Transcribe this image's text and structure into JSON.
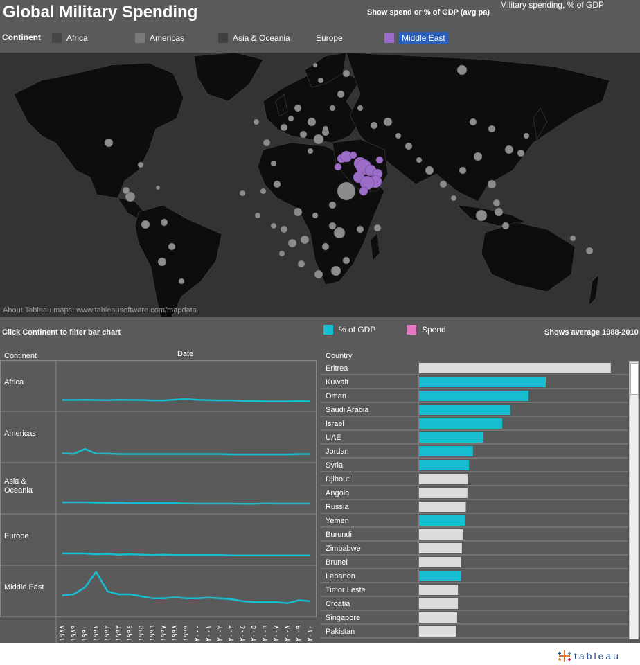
{
  "header": {
    "title": "Global Military Spending",
    "toggle_label": "Show spend or % of GDP (avg pa)",
    "toggle_value": "Military spending, % of GDP"
  },
  "continent_legend": {
    "label": "Continent",
    "items": [
      {
        "label": "Africa",
        "color": "#454545"
      },
      {
        "label": "Americas",
        "color": "#7a7a7a"
      },
      {
        "label": "Asia & Oceania",
        "color": "#404040"
      },
      {
        "label": "Europe",
        "color": "#5a5a5a"
      },
      {
        "label": "Middle East",
        "color": "#9b6cc8",
        "selected": true
      }
    ]
  },
  "map": {
    "credit": "About Tableau maps: www.tableausoftware.com/mapdata",
    "ocean_color": "#333333",
    "land_color": "#0d0d0d",
    "highlight_color": "#9b6cc8",
    "bubble_color": "#8c8c8c"
  },
  "lower": {
    "hint": "Click Continent to filter bar chart",
    "avg_note": "Shows average 1988-2010",
    "measure_legend": [
      {
        "label": "% of GDP",
        "color": "#17becf"
      },
      {
        "label": "Spend",
        "color": "#e377c2"
      }
    ],
    "col_continent": "Continent",
    "col_date": "Date",
    "col_country": "Country"
  },
  "chart_data": [
    {
      "type": "line",
      "title": "",
      "x": [
        "١٩٨٨",
        "١٩٨٩",
        "١٩٩٠",
        "١٩٩١",
        "١٩٩٢",
        "١٩٩٣",
        "١٩٩٤",
        "١٩٩٥",
        "١٩٩٦",
        "١٩٩٧",
        "١٩٩٨",
        "١٩٩٩",
        "٢٠٠٠",
        "٢٠٠١",
        "٢٠٠٢",
        "٢٠٠٣",
        "٢٠٠٤",
        "٢٠٠٥",
        "٢٠٠٦",
        "٢٠٠٧",
        "٢٠٠٨",
        "٢٠٠٩",
        "٢٠١٠"
      ],
      "xlabel": "Date",
      "series": [
        {
          "name": "Africa",
          "values": [
            3.0,
            3.0,
            3.1,
            3.0,
            2.9,
            3.1,
            3.0,
            3.0,
            2.8,
            2.8,
            3.2,
            3.5,
            3.1,
            2.9,
            2.8,
            2.8,
            2.5,
            2.5,
            2.3,
            2.3,
            2.3,
            2.5,
            2.3
          ]
        },
        {
          "name": "Americas",
          "values": [
            2.0,
            1.7,
            4.2,
            1.8,
            1.8,
            1.6,
            1.6,
            1.6,
            1.6,
            1.6,
            1.6,
            1.6,
            1.6,
            1.6,
            1.6,
            1.4,
            1.4,
            1.4,
            1.4,
            1.4,
            1.4,
            1.6,
            1.6
          ]
        },
        {
          "name": "Asia & Oceania",
          "values": [
            3.2,
            3.2,
            3.2,
            3.0,
            2.9,
            2.9,
            2.8,
            2.8,
            2.8,
            2.8,
            2.8,
            2.6,
            2.5,
            2.5,
            2.5,
            2.5,
            2.4,
            2.4,
            2.6,
            2.5,
            2.5,
            2.5,
            2.5
          ]
        },
        {
          "name": "Europe",
          "values": [
            3.2,
            3.2,
            3.2,
            2.8,
            3.0,
            2.6,
            2.8,
            2.6,
            2.4,
            2.6,
            2.4,
            2.4,
            2.4,
            2.4,
            2.4,
            2.2,
            2.2,
            2.2,
            2.2,
            2.2,
            2.2,
            2.2,
            2.2
          ]
        },
        {
          "name": "Middle East",
          "values": [
            8.0,
            8.5,
            12.0,
            20.0,
            10.0,
            8.5,
            8.5,
            7.5,
            6.5,
            6.5,
            7.0,
            6.5,
            6.5,
            6.8,
            6.5,
            6.0,
            5.0,
            4.5,
            4.5,
            4.5,
            4.0,
            5.5,
            5.0
          ]
        }
      ],
      "color": "#17becf"
    },
    {
      "type": "bar",
      "title": "",
      "xlabel": "",
      "ylabel": "Country",
      "categories": [
        "Eritrea",
        "Kuwait",
        "Oman",
        "Saudi Arabia",
        "Israel",
        "UAE",
        "Jordan",
        "Syria",
        "Djibouti",
        "Angola",
        "Russia",
        "Yemen",
        "Burundi",
        "Zimbabwe",
        "Brunei",
        "Lebanon",
        "Timor Leste",
        "Croatia",
        "Singapore",
        "Pakistan"
      ],
      "values": [
        24.2,
        16.0,
        13.8,
        11.5,
        10.5,
        8.1,
        6.8,
        6.3,
        6.2,
        6.1,
        5.9,
        5.8,
        5.5,
        5.4,
        5.3,
        5.3,
        4.9,
        4.9,
        4.8,
        4.7
      ],
      "middle_east": [
        false,
        true,
        true,
        true,
        true,
        true,
        true,
        true,
        false,
        false,
        false,
        true,
        false,
        false,
        false,
        true,
        false,
        false,
        false,
        false
      ],
      "xlim": [
        0,
        25
      ],
      "highlight_color": "#17becf",
      "other_color": "#dcdcdc"
    }
  ],
  "footer": {
    "brand": "tableau"
  }
}
